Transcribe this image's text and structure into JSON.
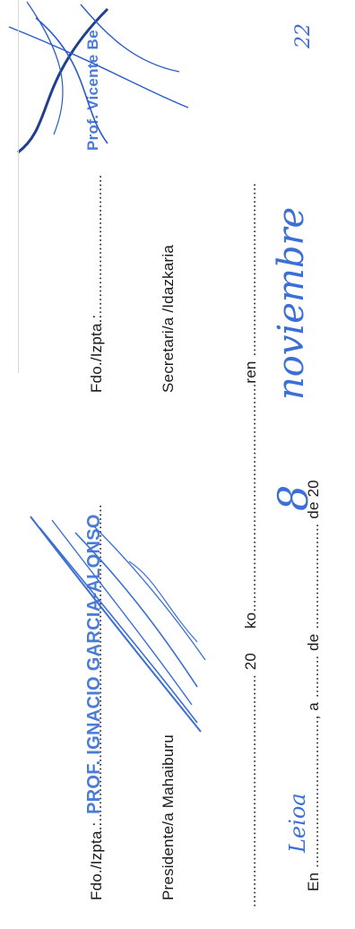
{
  "place_line": {
    "prefix": "En",
    "place": "Leioa",
    "dots_a": "...................................",
    "a_label": ", a",
    "day": "8",
    "dots_b": "..........",
    "de_label": "de",
    "month": "noviembre",
    "dots_c": ".........................",
    "de20_label": "de 20",
    "year_suffix": "22"
  },
  "basque_line": {
    "dots_a": ".......................................................",
    "num": "20",
    "ko_label": "ko",
    "dots_b": "......................................................",
    "ren_label": "ren",
    "dots_c": "........................................."
  },
  "president": {
    "title": "Presidente/a Mahaiburu",
    "fdo_label": "Fdo./Izpta.:",
    "stamp_name": "PROF. IGNACIO GARCIA-ALONSO",
    "dots": "..........................................................................."
  },
  "secretary": {
    "title": "Secretari/a /Idazkaria",
    "fdo_label": "Fdo./Izpta.:",
    "dots": ".................................",
    "stamp_name": "Prof. Vicente Be"
  },
  "colors": {
    "ink": "#1a1a1a",
    "pen_blue": "#3b6fd6",
    "stamp_blue": "#4b7bd8"
  }
}
